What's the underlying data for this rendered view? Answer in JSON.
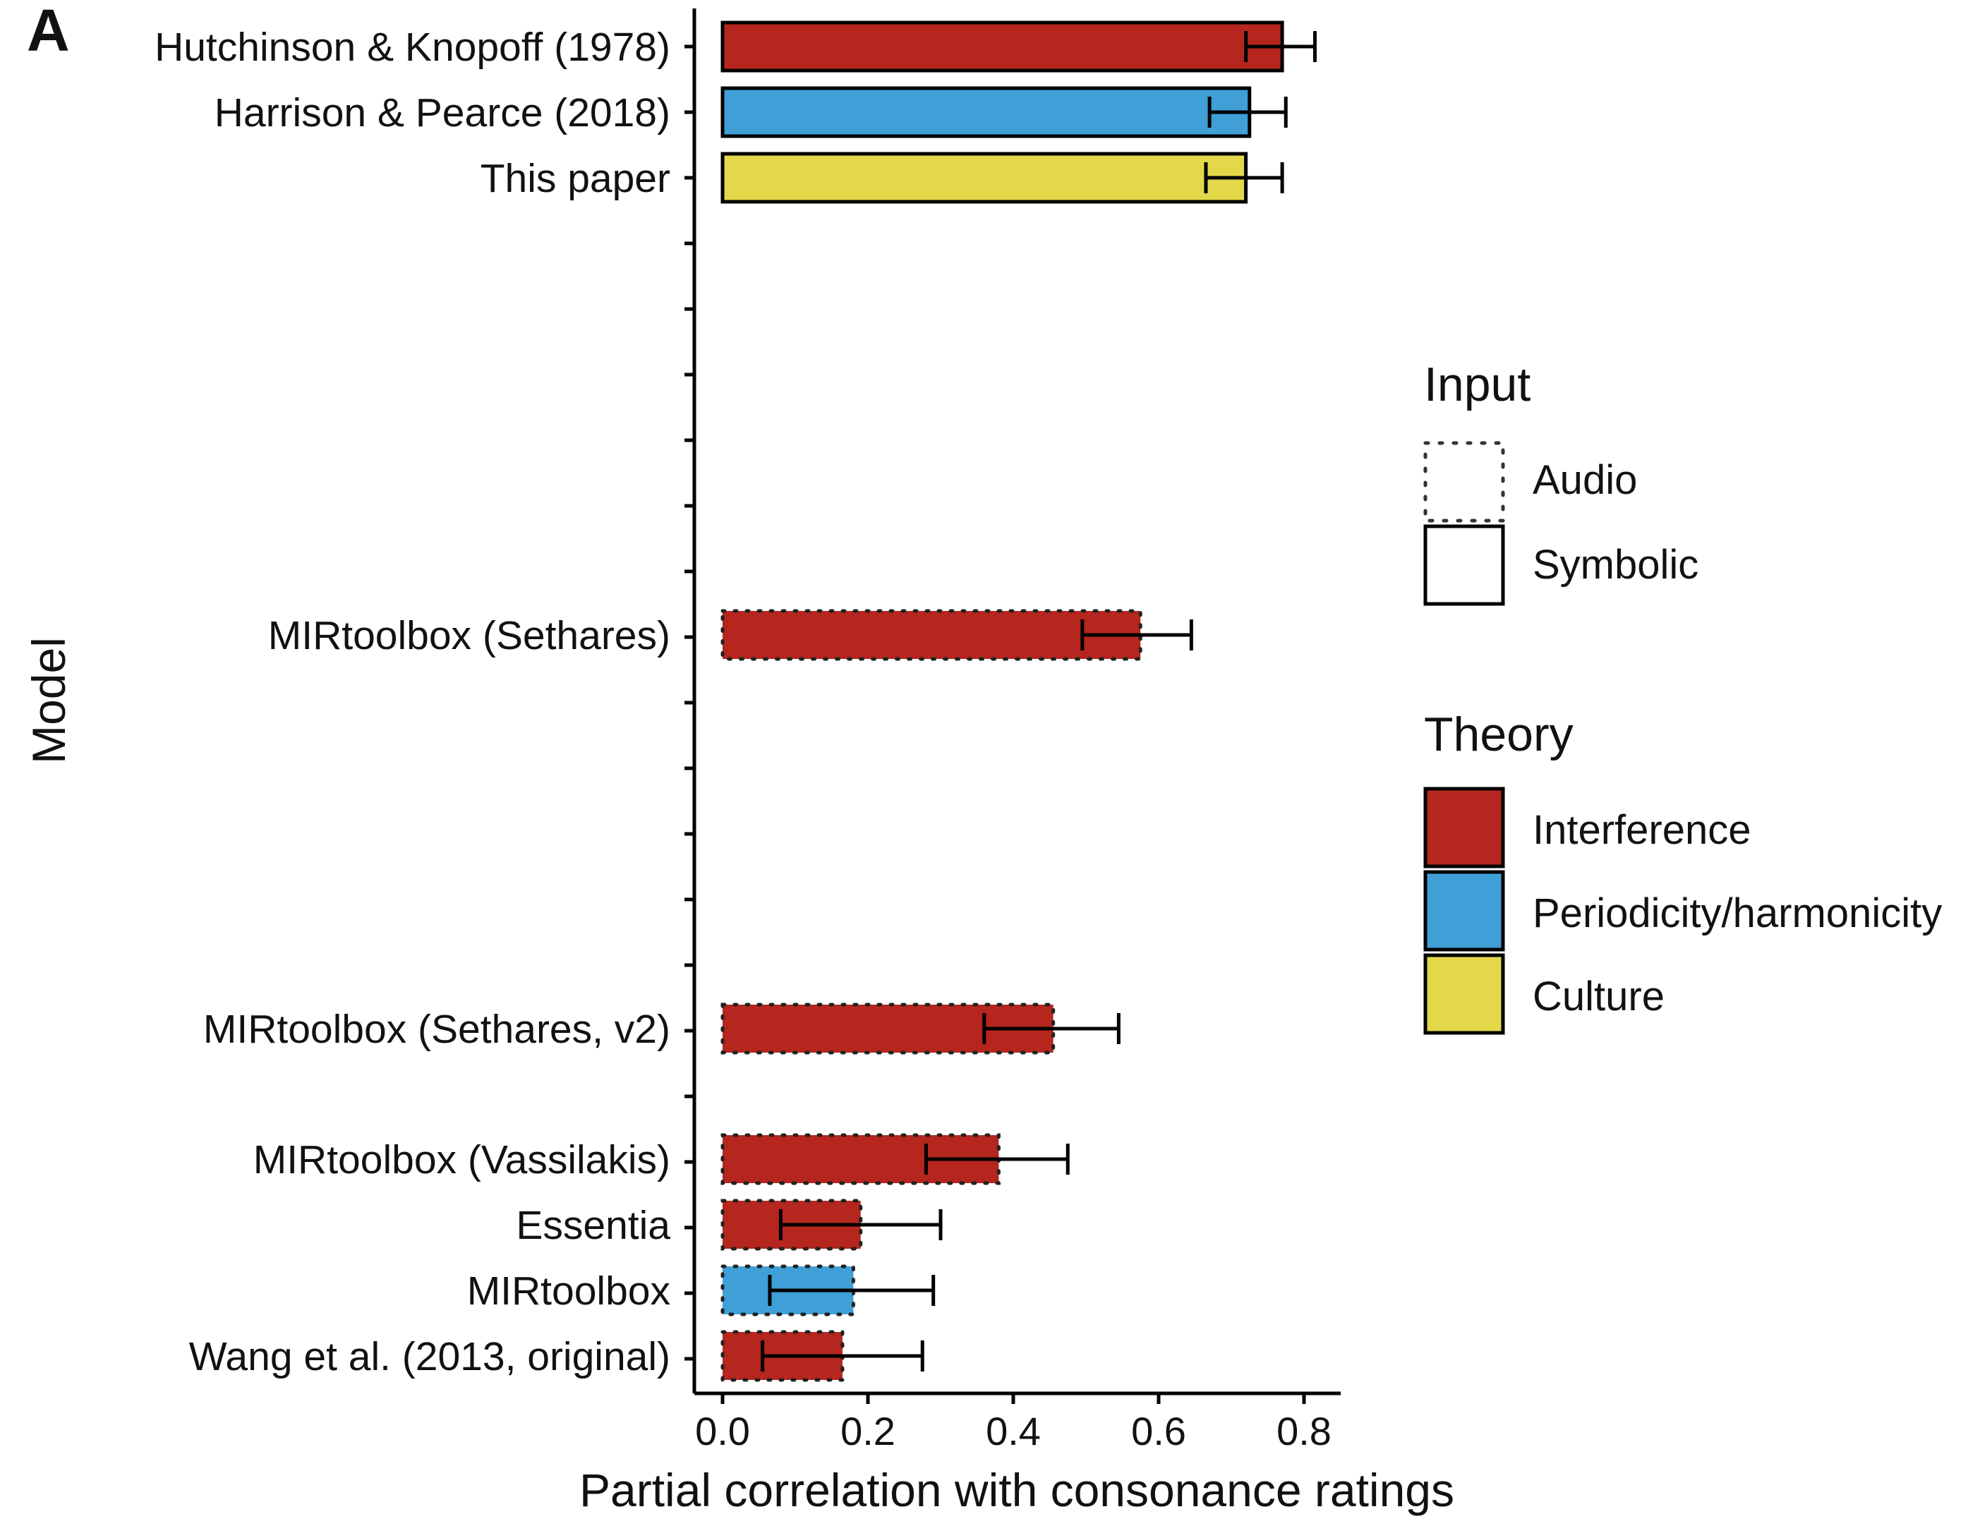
{
  "panel_label": "A",
  "chart_data": {
    "type": "bar",
    "orientation": "horizontal",
    "xlabel": "Partial correlation with consonance ratings",
    "ylabel": "Model",
    "xlim": [
      0,
      0.85
    ],
    "xticks": [
      "0.0",
      "0.2",
      "0.4",
      "0.6",
      "0.8"
    ],
    "xtick_values": [
      0,
      0.2,
      0.4,
      0.6,
      0.8
    ],
    "grid": false,
    "bars": [
      {
        "model": "Hutchinson & Knopoff (1978)",
        "value": 0.77,
        "ci_low": 0.72,
        "ci_high": 0.815,
        "theory": "Interference",
        "input": "Symbolic"
      },
      {
        "model": "Harrison & Pearce (2018)",
        "value": 0.725,
        "ci_low": 0.67,
        "ci_high": 0.775,
        "theory": "Periodicity/harmonicity",
        "input": "Symbolic"
      },
      {
        "model": "This paper",
        "value": 0.72,
        "ci_low": 0.665,
        "ci_high": 0.77,
        "theory": "Culture",
        "input": "Symbolic"
      },
      {
        "model": "MIRtoolbox (Sethares)",
        "value": 0.575,
        "ci_low": 0.495,
        "ci_high": 0.645,
        "theory": "Interference",
        "input": "Audio"
      },
      {
        "model": "MIRtoolbox (Sethares, v2)",
        "value": 0.455,
        "ci_low": 0.36,
        "ci_high": 0.545,
        "theory": "Interference",
        "input": "Audio"
      },
      {
        "model": "MIRtoolbox (Vassilakis)",
        "value": 0.38,
        "ci_low": 0.28,
        "ci_high": 0.475,
        "theory": "Interference",
        "input": "Audio"
      },
      {
        "model": "Essentia",
        "value": 0.19,
        "ci_low": 0.08,
        "ci_high": 0.3,
        "theory": "Interference",
        "input": "Audio"
      },
      {
        "model": "MIRtoolbox",
        "value": 0.18,
        "ci_low": 0.065,
        "ci_high": 0.29,
        "theory": "Periodicity/harmonicity",
        "input": "Audio"
      },
      {
        "model": "Wang et al. (2013, original)",
        "value": 0.165,
        "ci_low": 0.055,
        "ci_high": 0.275,
        "theory": "Interference",
        "input": "Audio"
      }
    ],
    "legend": {
      "placement": "right",
      "input": {
        "title": "Input",
        "items": [
          "Audio",
          "Symbolic"
        ]
      },
      "theory": {
        "title": "Theory",
        "items": [
          {
            "label": "Interference",
            "color": "#b5261e"
          },
          {
            "label": "Periodicity/harmonicity",
            "color": "#3f9fd6"
          },
          {
            "label": "Culture",
            "color": "#e2d84a"
          }
        ]
      }
    }
  }
}
